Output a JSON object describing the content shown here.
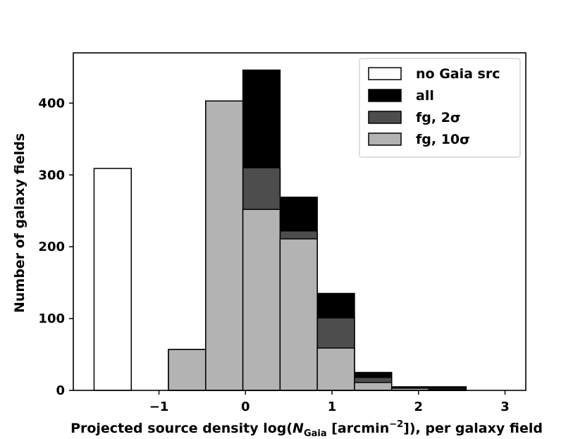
{
  "chart_data": {
    "type": "bar",
    "title": "",
    "xlabel": "Projected source density log(N_Gaia [arcmin^-2]), per galaxy field",
    "xlabel_parts": {
      "prefix": "Projected source density log(",
      "var": "N",
      "sub": "Gaia",
      "mid": " [arcmin",
      "sup": "−2",
      "suffix": "]), per galaxy field"
    },
    "ylabel": "Number of galaxy fields",
    "xlim": [
      -1.99,
      3.24
    ],
    "ylim": [
      0,
      470
    ],
    "x_ticks": [
      {
        "value": -1,
        "label": "−1"
      },
      {
        "value": 0,
        "label": "0"
      },
      {
        "value": 1,
        "label": "1"
      },
      {
        "value": 2,
        "label": "2"
      },
      {
        "value": 3,
        "label": "3"
      }
    ],
    "y_ticks": [
      {
        "value": 0,
        "label": "0"
      },
      {
        "value": 100,
        "label": "100"
      },
      {
        "value": 200,
        "label": "200"
      },
      {
        "value": 300,
        "label": "300"
      },
      {
        "value": 400,
        "label": "400"
      }
    ],
    "grid": false,
    "legend_position": "top-right",
    "series": [
      {
        "name": "no Gaia src",
        "color": "#ffffff",
        "bins": [
          {
            "x0": -1.75,
            "x1": -1.32,
            "value": 309
          }
        ]
      },
      {
        "name": "all",
        "color": "#000000",
        "bins": [
          {
            "x0": -0.89,
            "x1": -0.46,
            "value": 57
          },
          {
            "x0": -0.46,
            "x1": -0.03,
            "value": 403
          },
          {
            "x0": -0.03,
            "x1": 0.4,
            "value": 446
          },
          {
            "x0": 0.4,
            "x1": 0.83,
            "value": 269
          },
          {
            "x0": 0.83,
            "x1": 1.26,
            "value": 135
          },
          {
            "x0": 1.26,
            "x1": 1.69,
            "value": 25
          },
          {
            "x0": 1.69,
            "x1": 2.12,
            "value": 5
          },
          {
            "x0": 2.12,
            "x1": 2.55,
            "value": 5
          }
        ]
      },
      {
        "name": "fg, 2σ",
        "color": "#4d4d4d",
        "bins": [
          {
            "x0": -0.89,
            "x1": -0.46,
            "value": 57
          },
          {
            "x0": -0.46,
            "x1": -0.03,
            "value": 403
          },
          {
            "x0": -0.03,
            "x1": 0.4,
            "value": 310
          },
          {
            "x0": 0.4,
            "x1": 0.83,
            "value": 222
          },
          {
            "x0": 0.83,
            "x1": 1.26,
            "value": 101
          },
          {
            "x0": 1.26,
            "x1": 1.69,
            "value": 18
          },
          {
            "x0": 1.69,
            "x1": 2.12,
            "value": 4
          },
          {
            "x0": 2.12,
            "x1": 2.55,
            "value": 3
          }
        ]
      },
      {
        "name": "fg, 10σ",
        "color": "#b3b3b3",
        "bins": [
          {
            "x0": -0.89,
            "x1": -0.46,
            "value": 57
          },
          {
            "x0": -0.46,
            "x1": -0.03,
            "value": 403
          },
          {
            "x0": -0.03,
            "x1": 0.4,
            "value": 252
          },
          {
            "x0": 0.4,
            "x1": 0.83,
            "value": 211
          },
          {
            "x0": 0.83,
            "x1": 1.26,
            "value": 59
          },
          {
            "x0": 1.26,
            "x1": 1.69,
            "value": 11
          },
          {
            "x0": 1.69,
            "x1": 2.12,
            "value": 3
          },
          {
            "x0": 2.12,
            "x1": 2.55,
            "value": 1
          }
        ]
      }
    ]
  }
}
